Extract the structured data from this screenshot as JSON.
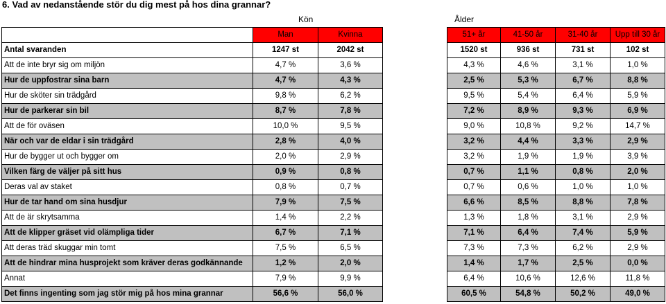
{
  "title": "6. Vad av nedanstående stör du dig mest på hos dina grannar?",
  "group_headers": {
    "gender": "Kön",
    "age": "Ålder"
  },
  "columns": {
    "gender": [
      "Man",
      "Kvinna"
    ],
    "age": [
      "51+ år",
      "41-50 år",
      "31-40 år",
      "Upp till 30 år"
    ]
  },
  "rows": [
    {
      "label": "Antal svaranden",
      "gender": [
        "1247 st",
        "2042 st"
      ],
      "age": [
        "1520 st",
        "936 st",
        "731 st",
        "102 st"
      ]
    },
    {
      "label": "Att de inte bryr sig om miljön",
      "gender": [
        "4,7 %",
        "3,6 %"
      ],
      "age": [
        "4,3 %",
        "4,6 %",
        "3,1 %",
        "1,0 %"
      ]
    },
    {
      "label": "Hur de uppfostrar sina barn",
      "gender": [
        "4,7 %",
        "4,3 %"
      ],
      "age": [
        "2,5 %",
        "5,3 %",
        "6,7 %",
        "8,8 %"
      ]
    },
    {
      "label": "Hur de sköter sin trädgård",
      "gender": [
        "9,8 %",
        "6,2 %"
      ],
      "age": [
        "9,5 %",
        "5,4 %",
        "6,4 %",
        "5,9 %"
      ]
    },
    {
      "label": "Hur de parkerar sin bil",
      "gender": [
        "8,7 %",
        "7,8 %"
      ],
      "age": [
        "7,2 %",
        "8,9 %",
        "9,3 %",
        "6,9 %"
      ]
    },
    {
      "label": "Att de för oväsen",
      "gender": [
        "10,0 %",
        "9,5 %"
      ],
      "age": [
        "9,0 %",
        "10,8 %",
        "9,2 %",
        "14,7 %"
      ]
    },
    {
      "label": "När och var de eldar i sin trädgård",
      "gender": [
        "2,8 %",
        "4,0 %"
      ],
      "age": [
        "3,2 %",
        "4,4 %",
        "3,3 %",
        "2,9 %"
      ]
    },
    {
      "label": "Hur de bygger ut och bygger om",
      "gender": [
        "2,0 %",
        "2,9 %"
      ],
      "age": [
        "3,2 %",
        "1,9 %",
        "1,9 %",
        "3,9 %"
      ]
    },
    {
      "label": "Vilken färg de väljer på sitt hus",
      "gender": [
        "0,9 %",
        "0,8 %"
      ],
      "age": [
        "0,7 %",
        "1,1 %",
        "0,8 %",
        "2,0 %"
      ]
    },
    {
      "label": "Deras val av staket",
      "gender": [
        "0,8 %",
        "0,7 %"
      ],
      "age": [
        "0,7 %",
        "0,6 %",
        "1,0 %",
        "1,0 %"
      ]
    },
    {
      "label": "Hur de tar hand om sina husdjur",
      "gender": [
        "7,9 %",
        "7,5 %"
      ],
      "age": [
        "6,6 %",
        "8,5 %",
        "8,8 %",
        "7,8 %"
      ]
    },
    {
      "label": "Att de är skrytsamma",
      "gender": [
        "1,4 %",
        "2,2 %"
      ],
      "age": [
        "1,3 %",
        "1,8 %",
        "3,1 %",
        "2,9 %"
      ]
    },
    {
      "label": "Att de klipper gräset vid olämpliga tider",
      "gender": [
        "6,7 %",
        "7,1 %"
      ],
      "age": [
        "7,1 %",
        "6,4 %",
        "7,4 %",
        "5,9 %"
      ]
    },
    {
      "label": "Att deras träd skuggar min tomt",
      "gender": [
        "7,5 %",
        "6,5 %"
      ],
      "age": [
        "7,3 %",
        "7,3 %",
        "6,2 %",
        "2,9 %"
      ]
    },
    {
      "label": "Att de hindrar mina husprojekt som kräver deras godkännande",
      "gender": [
        "1,2 %",
        "2,0 %"
      ],
      "age": [
        "1,4 %",
        "1,7 %",
        "2,5 %",
        "0,0 %"
      ]
    },
    {
      "label": "Annat",
      "gender": [
        "7,9 %",
        "9,9 %"
      ],
      "age": [
        "6,4 %",
        "10,6 %",
        "12,6 %",
        "11,8 %"
      ]
    },
    {
      "label": "Det finns ingenting som jag stör mig på hos mina grannar",
      "gender": [
        "56,6 %",
        "56,0 %"
      ],
      "age": [
        "60,5 %",
        "54,8 %",
        "50,2 %",
        "49,0 %"
      ]
    }
  ],
  "colors": {
    "header_fill": "#ff0000",
    "row_shade": "#c0c0c0"
  }
}
